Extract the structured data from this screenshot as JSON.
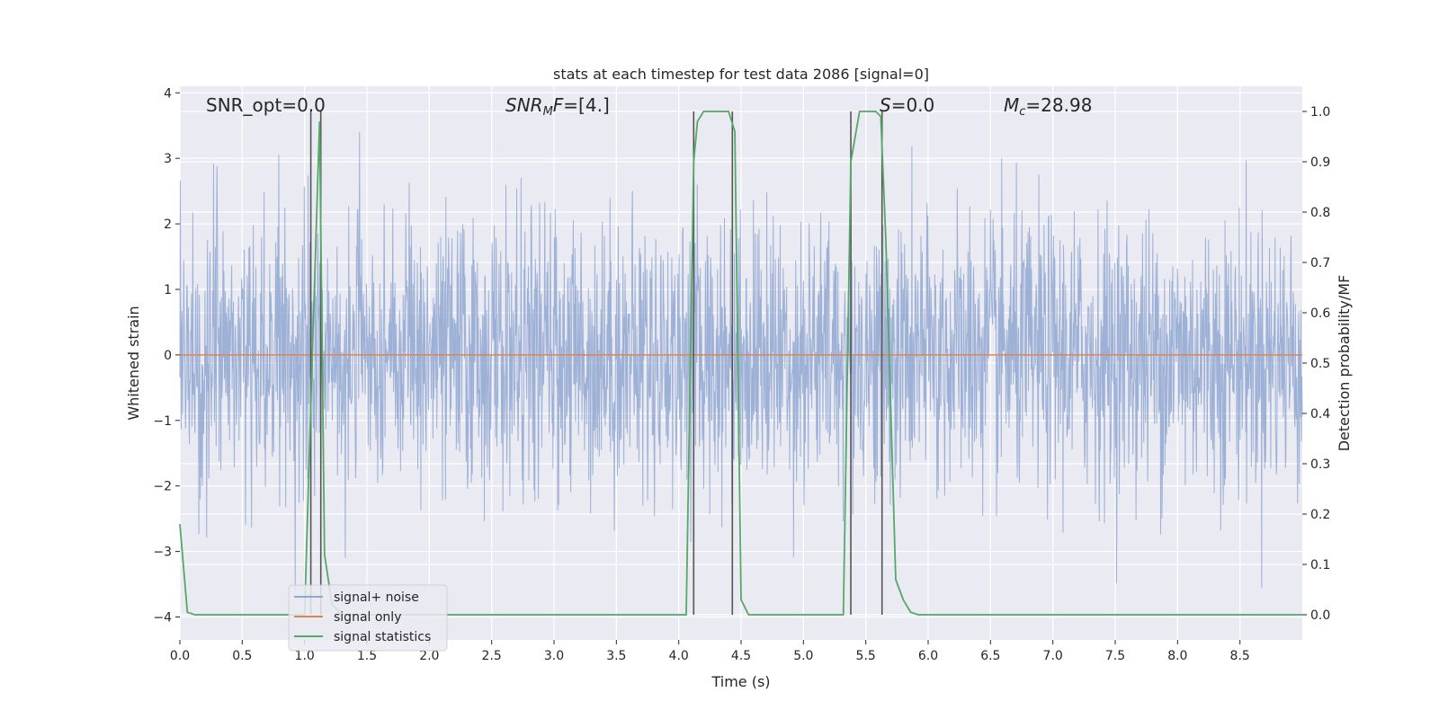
{
  "chart_data": {
    "type": "line",
    "title": "stats at each timestep for test data 2086 [signal=0]",
    "xlabel": "Time (s)",
    "ylabel_left": "Whitened strain",
    "ylabel_right": "Detection probability/MF",
    "xlim": [
      0.0,
      9.0
    ],
    "ylim_left": [
      -4.35,
      4.1
    ],
    "ylim_right": [
      -0.05,
      1.05
    ],
    "grid": true,
    "legend_position": "lower-left",
    "x_ticks": [
      "0.0",
      "0.5",
      "1.0",
      "1.5",
      "2.0",
      "2.5",
      "3.0",
      "3.5",
      "4.0",
      "4.5",
      "5.0",
      "5.5",
      "6.0",
      "6.5",
      "7.0",
      "7.5",
      "8.0",
      "8.5"
    ],
    "x_tick_values": [
      0.0,
      0.5,
      1.0,
      1.5,
      2.0,
      2.5,
      3.0,
      3.5,
      4.0,
      4.5,
      5.0,
      5.5,
      6.0,
      6.5,
      7.0,
      7.5,
      8.0,
      8.5
    ],
    "y_left_ticks": [
      "4",
      "3",
      "2",
      "1",
      "0",
      "−1",
      "−2",
      "−3",
      "−4"
    ],
    "y_left_tick_values": [
      4,
      3,
      2,
      1,
      0,
      -1,
      -2,
      -3,
      -4
    ],
    "y_right_ticks": [
      "1.0",
      "0.9",
      "0.8",
      "0.7",
      "0.6",
      "0.5",
      "0.4",
      "0.3",
      "0.2",
      "0.1",
      "0.0"
    ],
    "y_right_tick_values": [
      1.0,
      0.9,
      0.8,
      0.7,
      0.6,
      0.5,
      0.4,
      0.3,
      0.2,
      0.1,
      0.0
    ],
    "annotations": [
      {
        "text": "SNR_opt=0.0",
        "x": 0.2
      },
      {
        "text": "SNR_MF=[4.]",
        "x": 2.6
      },
      {
        "text": "S=0.0",
        "x": 5.65
      },
      {
        "text": "M_c=28.98",
        "x": 6.65
      }
    ],
    "series": [
      {
        "name": "signal+ noise",
        "color": "#8fa6d1",
        "axis": "left",
        "kind": "noise",
        "amplitude_envelope": [
          -3.7,
          3.65
        ]
      },
      {
        "name": "signal only",
        "color": "#dd8452",
        "axis": "left",
        "x": [
          0.0,
          9.0
        ],
        "y": [
          0.0,
          0.0
        ]
      },
      {
        "name": "signal statistics",
        "color": "#55a868",
        "axis": "right",
        "x": [
          0.0,
          0.06,
          0.12,
          0.5,
          1.0,
          1.0,
          1.06,
          1.12,
          1.16,
          1.22,
          1.3,
          1.5,
          2.0,
          3.0,
          4.06,
          4.12,
          4.15,
          4.2,
          4.4,
          4.45,
          4.5,
          4.56,
          5.0,
          5.32,
          5.38,
          5.45,
          5.58,
          5.62,
          5.66,
          5.74,
          5.8,
          5.86,
          5.92,
          6.0,
          7.0,
          8.0,
          9.0
        ],
        "y": [
          0.18,
          0.005,
          0.0,
          0.0,
          0.0,
          0.0,
          0.5,
          0.98,
          0.12,
          0.02,
          0.0,
          0.0,
          0.0,
          0.0,
          0.0,
          0.9,
          0.98,
          1.0,
          1.0,
          0.96,
          0.03,
          0.0,
          0.0,
          0.0,
          0.9,
          1.0,
          1.0,
          0.99,
          0.75,
          0.07,
          0.03,
          0.005,
          0.0,
          0.0,
          0.0,
          0.0,
          0.0
        ]
      }
    ],
    "vertical_lines": [
      1.05,
      1.13,
      4.12,
      4.43,
      5.38,
      5.63
    ],
    "vertical_line_color": "#555555"
  },
  "legend": {
    "items": [
      {
        "label": "signal+ noise",
        "color": "#8fa6d1"
      },
      {
        "label": "signal only",
        "color": "#dd8452"
      },
      {
        "label": "signal statistics",
        "color": "#55a868"
      }
    ]
  }
}
